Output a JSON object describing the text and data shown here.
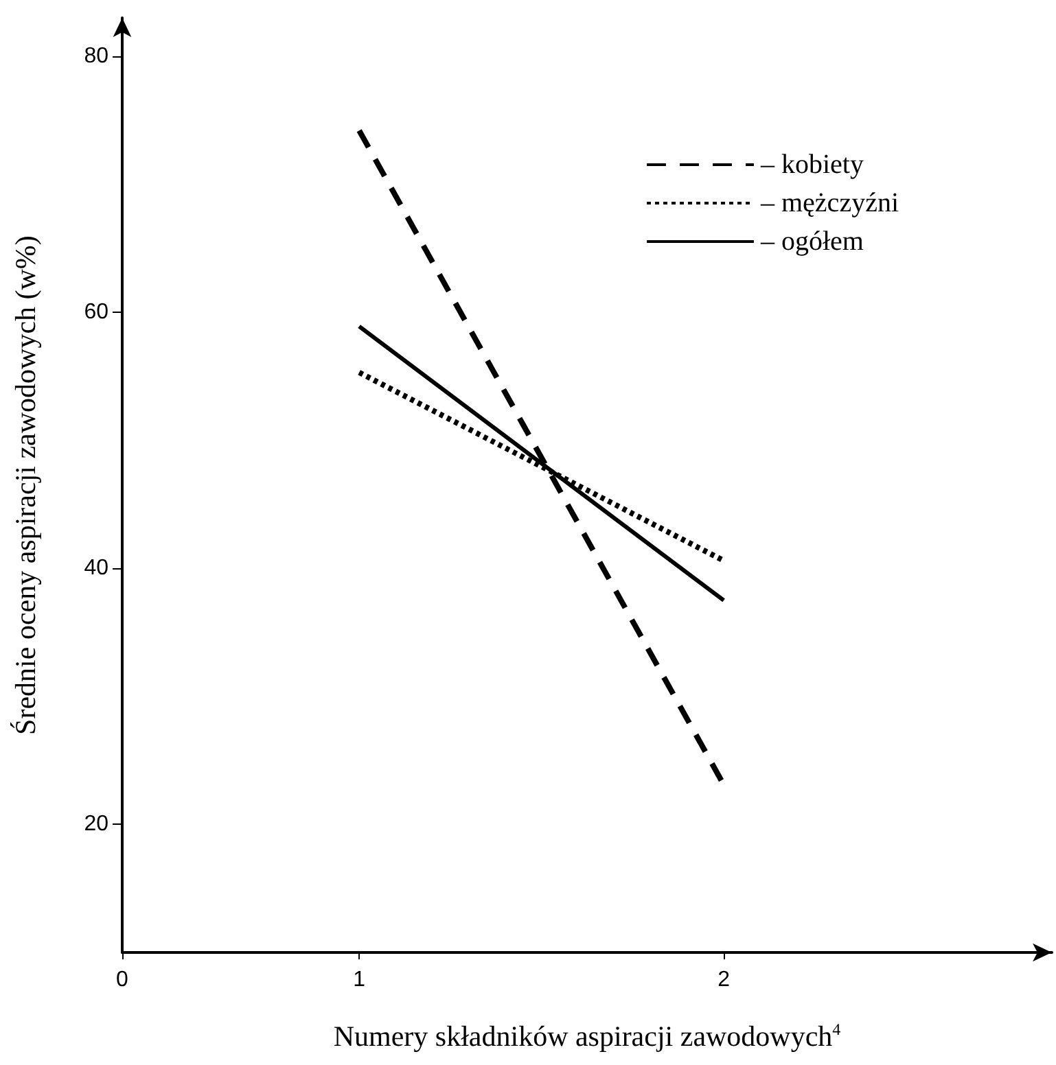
{
  "chart_data": {
    "type": "line",
    "xlabel": "Numery składników aspiracji zawodowych$^{4}$",
    "ylabel": "Średnie oceny aspiracji zawodowych (w%)",
    "xlim": [
      0.35,
      2.9
    ],
    "xticks": [
      {
        "value": 0.35,
        "label": "0"
      },
      1,
      2
    ],
    "ylim": [
      10,
      83
    ],
    "yticks": [
      20,
      40,
      60,
      80
    ],
    "grid": false,
    "legend": "top right",
    "marker": "none",
    "x": [
      1,
      2
    ],
    "series": [
      {
        "name": "– kobiety",
        "color": "#000000",
        "line_style": "dashed",
        "values": [
          74.2,
          23.1
        ]
      },
      {
        "name": "– mężczyźni",
        "color": "#000000",
        "line_style": "dotted",
        "values": [
          55.3,
          40.6
        ]
      },
      {
        "name": "– ogółem",
        "color": "#000000",
        "line_style": "solid",
        "values": [
          58.9,
          37.5
        ]
      }
    ]
  }
}
